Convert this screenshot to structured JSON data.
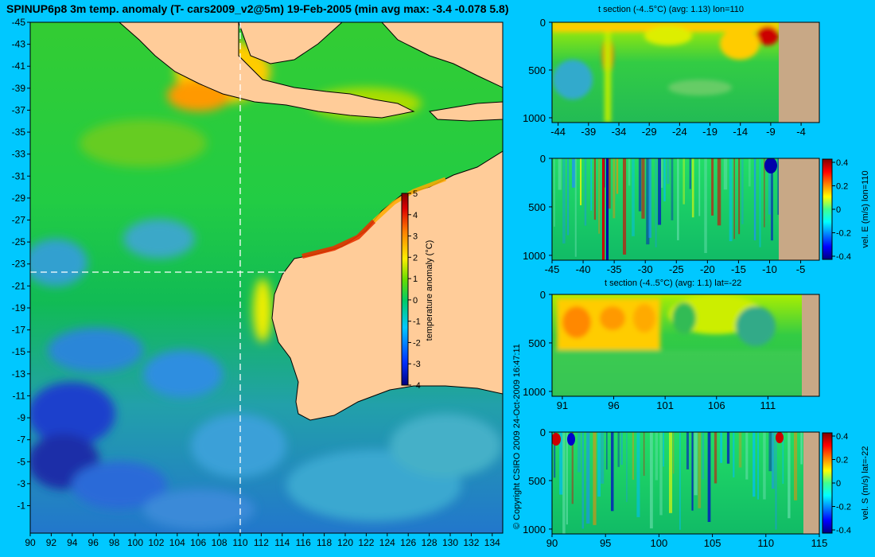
{
  "header": {
    "title": "SPINUP6p8 3m temp. anomaly (T- cars2009_v2@5m) 19-Feb-2005 (min avg max: -3.4 -0.078 5.8)"
  },
  "copyright": "© Copyright CSIRO 2009   24-Oct-2009 16:47:11",
  "colors": {
    "background": "#00c8ff",
    "land": "#ffcc99",
    "section_land": "#c8a886"
  },
  "chart_data": [
    {
      "id": "map",
      "type": "heatmap",
      "title": "SPINUP6p8 3m temp. anomaly (T- cars2009_v2@5m) 19-Feb-2005 (min avg max: -3.4 -0.078 5.8)",
      "x_ticks": [
        90,
        92,
        94,
        96,
        98,
        100,
        102,
        104,
        106,
        108,
        110,
        112,
        114,
        116,
        118,
        120,
        122,
        124,
        126,
        128,
        130,
        132,
        134
      ],
      "y_ticks": [
        -1,
        -3,
        -5,
        -7,
        -9,
        -11,
        -13,
        -15,
        -17,
        -19,
        -21,
        -23,
        -25,
        -27,
        -29,
        -31,
        -33,
        -35,
        -37,
        -39,
        -41,
        -43,
        -45
      ],
      "xlim": [
        90,
        135
      ],
      "ylim": [
        -45,
        1.5
      ],
      "crosshair": {
        "lon": 110,
        "lat": -22
      },
      "colorbar": {
        "label": "temperature anomaly (°C)",
        "ticks": [
          -4,
          -3,
          -2,
          -1,
          0,
          1,
          2,
          3,
          4,
          5
        ],
        "range": [
          -4,
          5
        ]
      }
    },
    {
      "id": "section1",
      "type": "heatmap",
      "title": "t section (-4..5°C) (avg: 1.13) lon=110",
      "x_ticks": [
        -44,
        -39,
        -34,
        -29,
        -24,
        -19,
        -14,
        -9,
        -4
      ],
      "y_ticks": [
        0,
        500,
        1000
      ],
      "xlim": [
        -45,
        -1
      ],
      "ylim": [
        1050,
        0
      ]
    },
    {
      "id": "section2",
      "type": "heatmap",
      "title": "",
      "x_ticks": [
        -45,
        -40,
        -35,
        -30,
        -25,
        -20,
        -15,
        -10,
        -5
      ],
      "y_ticks": [
        0,
        500,
        1000
      ],
      "xlim": [
        -45,
        -2
      ],
      "ylim": [
        1050,
        0
      ],
      "colorbar": {
        "label": "vel. E (m/s) lon=110",
        "ticks": [
          "0.4",
          "0.2",
          "0",
          "-0.2",
          "-0.4"
        ],
        "range": [
          -0.4,
          0.4
        ]
      }
    },
    {
      "id": "section3",
      "type": "heatmap",
      "title": "t section (-4..5°C) (avg: 1.1) lat=-22",
      "x_ticks": [
        91,
        96,
        101,
        106,
        111
      ],
      "y_ticks": [
        0,
        500,
        1000
      ],
      "xlim": [
        90,
        116
      ],
      "ylim": [
        1050,
        0
      ]
    },
    {
      "id": "section4",
      "type": "heatmap",
      "title": "",
      "x_ticks": [
        90,
        95,
        100,
        105,
        110,
        115
      ],
      "y_ticks": [
        0,
        500,
        1000
      ],
      "xlim": [
        90,
        115
      ],
      "ylim": [
        1050,
        0
      ],
      "colorbar": {
        "label": "vel. S (m/s) lat=-22",
        "ticks": [
          "0.4",
          "0.2",
          "0",
          "-0.2",
          "-0.4"
        ],
        "range": [
          -0.4,
          0.4
        ]
      }
    }
  ]
}
